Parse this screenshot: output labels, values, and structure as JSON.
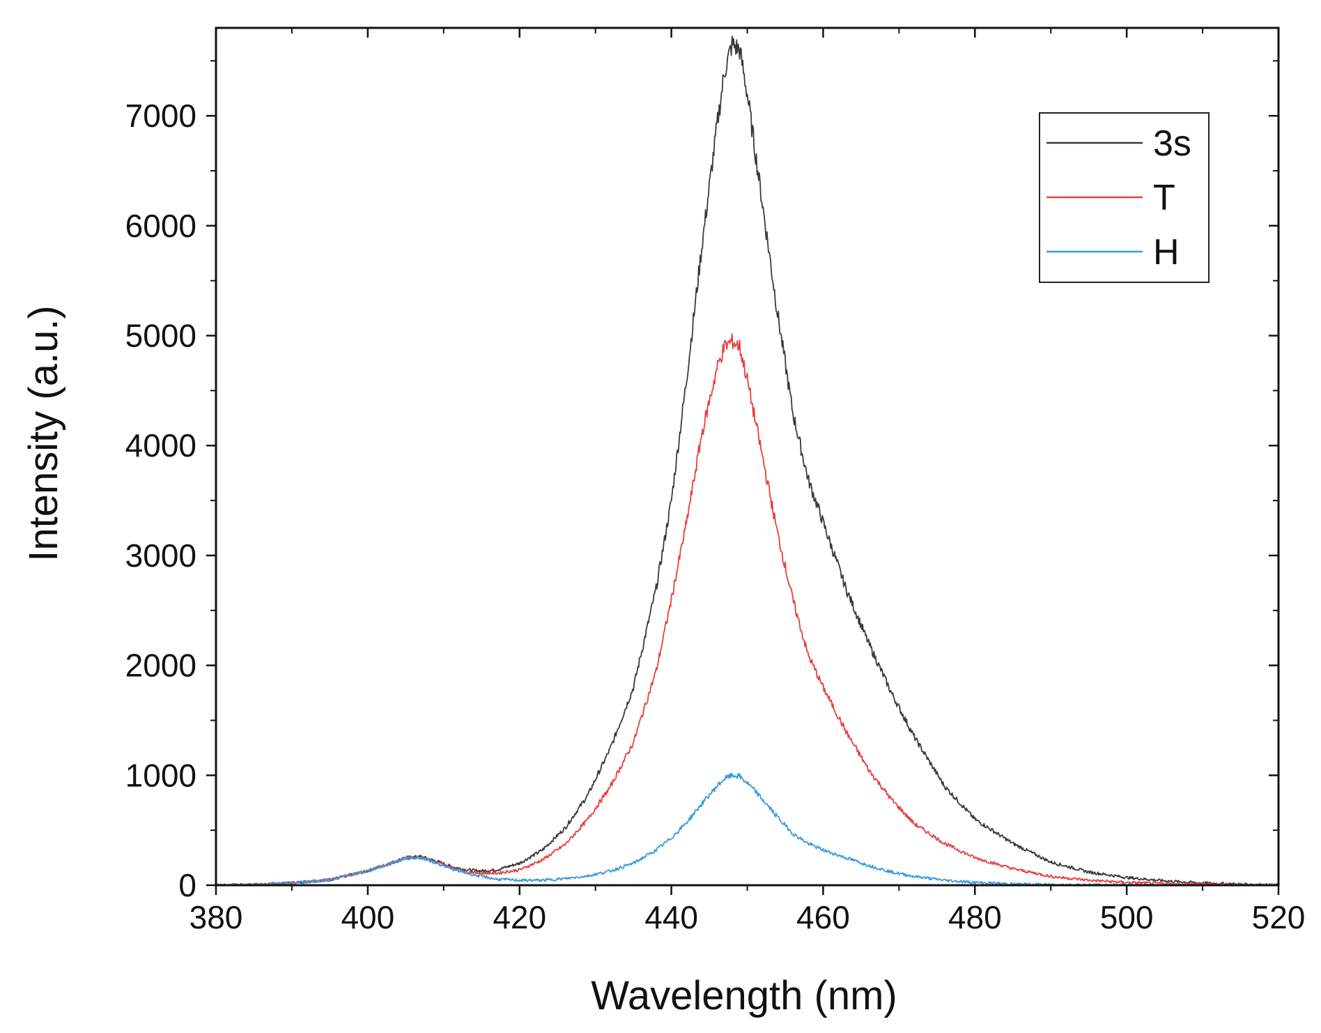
{
  "chart_data": {
    "type": "line",
    "title": "",
    "xlabel": "Wavelength (nm)",
    "ylabel": "Intensity (a.u.)",
    "xlim": [
      380,
      520
    ],
    "ylim": [
      0,
      7800
    ],
    "xticks": [
      380,
      400,
      420,
      440,
      460,
      480,
      500,
      520
    ],
    "xtick_labels": [
      "380",
      "400",
      "420",
      "440",
      "460",
      "480",
      "500",
      "520"
    ],
    "yticks": [
      0,
      1000,
      2000,
      3000,
      4000,
      5000,
      6000,
      7000
    ],
    "ytick_labels": [
      "0",
      "1000",
      "2000",
      "3000",
      "4000",
      "5000",
      "6000",
      "7000"
    ],
    "grid": false,
    "legend_position": "top-right",
    "series": [
      {
        "name": "3s",
        "color": "#3a3a3a",
        "x": [
          380,
          385,
          390,
          395,
          400,
          403,
          405,
          407,
          409,
          411,
          413,
          415,
          417,
          420,
          423,
          426,
          429,
          432,
          435,
          438,
          440,
          442,
          444,
          446,
          447,
          448,
          449,
          450,
          451,
          452,
          454,
          456,
          458,
          460,
          463,
          466,
          469,
          472,
          476,
          480,
          485,
          490,
          495,
          500,
          505,
          510,
          515,
          520
        ],
        "y": [
          0,
          5,
          20,
          50,
          130,
          200,
          250,
          260,
          220,
          170,
          140,
          130,
          140,
          200,
          320,
          520,
          820,
          1250,
          1800,
          2700,
          3500,
          4600,
          5800,
          6900,
          7400,
          7650,
          7600,
          7200,
          6700,
          6200,
          5200,
          4300,
          3700,
          3300,
          2700,
          2200,
          1750,
          1350,
          900,
          600,
          380,
          210,
          120,
          70,
          40,
          20,
          10,
          0
        ]
      },
      {
        "name": "T",
        "color": "#e8403f",
        "x": [
          380,
          385,
          390,
          395,
          400,
          403,
          405,
          407,
          409,
          411,
          413,
          415,
          417,
          420,
          423,
          426,
          429,
          432,
          435,
          438,
          440,
          442,
          444,
          446,
          447,
          448,
          449,
          450,
          451,
          452,
          454,
          456,
          458,
          460,
          463,
          466,
          469,
          472,
          476,
          480,
          485,
          490,
          495,
          500,
          505,
          510,
          515,
          520
        ],
        "y": [
          0,
          5,
          20,
          50,
          130,
          200,
          250,
          255,
          210,
          160,
          125,
          110,
          110,
          140,
          230,
          370,
          600,
          900,
          1300,
          1950,
          2600,
          3300,
          4100,
          4700,
          4900,
          4950,
          4900,
          4600,
          4250,
          3900,
          3200,
          2600,
          2100,
          1800,
          1400,
          1050,
          780,
          560,
          380,
          250,
          150,
          80,
          45,
          25,
          15,
          10,
          5,
          0
        ]
      },
      {
        "name": "H",
        "color": "#3a9bdc",
        "x": [
          380,
          385,
          390,
          395,
          400,
          403,
          405,
          407,
          409,
          411,
          413,
          415,
          417,
          420,
          423,
          426,
          429,
          432,
          435,
          438,
          440,
          442,
          444,
          446,
          447,
          448,
          449,
          450,
          451,
          452,
          454,
          456,
          458,
          460,
          463,
          466,
          469,
          472,
          476,
          480,
          485,
          490,
          495,
          500,
          505,
          510,
          515,
          520
        ],
        "y": [
          0,
          5,
          20,
          50,
          130,
          200,
          245,
          250,
          205,
          150,
          110,
          80,
          55,
          45,
          45,
          60,
          85,
          130,
          200,
          320,
          430,
          570,
          740,
          900,
          970,
          1000,
          990,
          930,
          860,
          780,
          620,
          470,
          380,
          320,
          250,
          180,
          120,
          80,
          45,
          25,
          12,
          6,
          3,
          2,
          1,
          0,
          0,
          0
        ]
      }
    ]
  }
}
